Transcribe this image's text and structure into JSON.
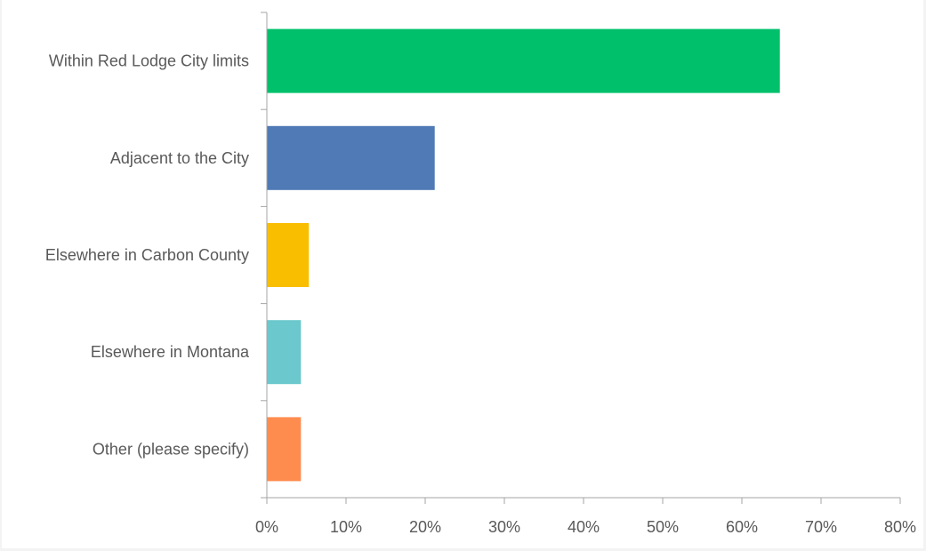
{
  "chart_data": {
    "type": "bar",
    "orientation": "horizontal",
    "categories": [
      "Within Red Lodge City limits",
      "Adjacent to the City",
      "Elsewhere in Carbon County",
      "Elsewhere in Montana",
      "Other (please specify)"
    ],
    "values": [
      64.8,
      21.2,
      5.3,
      4.3,
      4.3
    ],
    "colors": [
      "#00c06b",
      "#4f7ab5",
      "#f9be00",
      "#6bc8cc",
      "#ff8c4f"
    ],
    "xlim": [
      0,
      80
    ],
    "x_ticks": [
      "0%",
      "10%",
      "20%",
      "30%",
      "40%",
      "50%",
      "60%",
      "70%",
      "80%"
    ],
    "grid": false,
    "legend": "none"
  }
}
